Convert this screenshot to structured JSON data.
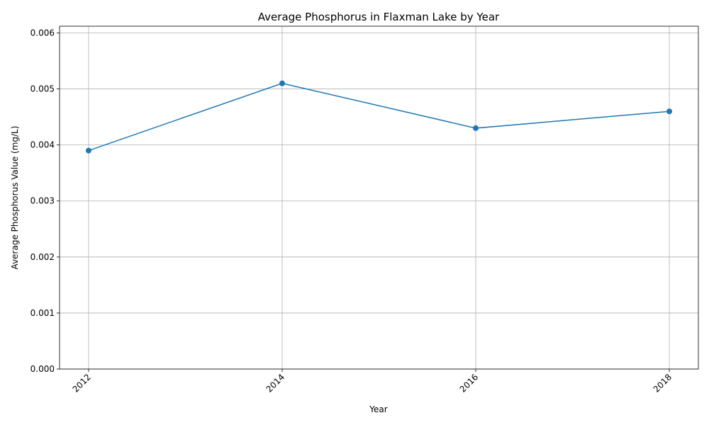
{
  "chart_data": {
    "type": "line",
    "title": "Average Phosphorus in Flaxman Lake by Year",
    "xlabel": "Year",
    "ylabel": "Average Phosphorus Value (mg/L)",
    "x": [
      2012,
      2014,
      2016,
      2018
    ],
    "x_tick_labels": [
      "2012",
      "2014",
      "2016",
      "2018"
    ],
    "series": [
      {
        "values": [
          0.0039,
          0.0051,
          0.0043,
          0.0046
        ]
      }
    ],
    "xlim": [
      2011.7,
      2018.3
    ],
    "ylim": [
      0,
      0.00612
    ],
    "y_ticks": [
      0,
      0.001,
      0.002,
      0.003,
      0.004,
      0.005,
      0.006
    ],
    "y_tick_labels": [
      "0.000",
      "0.001",
      "0.002",
      "0.003",
      "0.004",
      "0.005",
      "0.006"
    ],
    "grid": true,
    "marker": "circle",
    "colors": {
      "line": "#1f77b4",
      "marker": "#1f77b4"
    }
  }
}
